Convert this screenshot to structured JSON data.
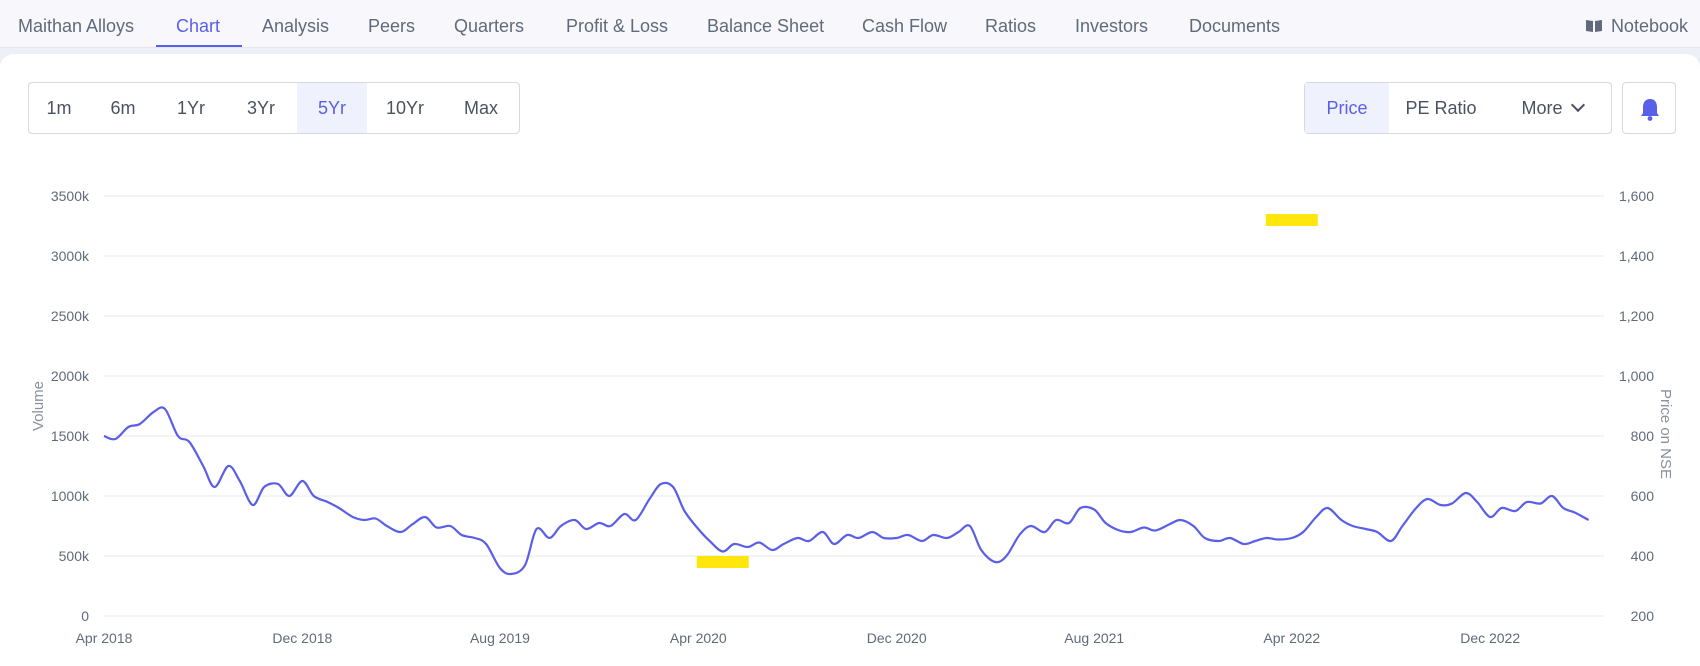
{
  "nav": {
    "tabs": [
      {
        "label": "Maithan Alloys",
        "active": false
      },
      {
        "label": "Chart",
        "active": true
      },
      {
        "label": "Analysis",
        "active": false
      },
      {
        "label": "Peers",
        "active": false
      },
      {
        "label": "Quarters",
        "active": false
      },
      {
        "label": "Profit & Loss",
        "active": false
      },
      {
        "label": "Balance Sheet",
        "active": false
      },
      {
        "label": "Cash Flow",
        "active": false
      },
      {
        "label": "Ratios",
        "active": false
      },
      {
        "label": "Investors",
        "active": false
      },
      {
        "label": "Documents",
        "active": false
      }
    ],
    "notebook_label": "Notebook"
  },
  "ranges": [
    {
      "label": "1m",
      "active": false
    },
    {
      "label": "6m",
      "active": false
    },
    {
      "label": "1Yr",
      "active": false
    },
    {
      "label": "3Yr",
      "active": false
    },
    {
      "label": "5Yr",
      "active": true
    },
    {
      "label": "10Yr",
      "active": false
    },
    {
      "label": "Max",
      "active": false
    }
  ],
  "metrics": {
    "price_label": "Price",
    "pe_label": "PE Ratio",
    "more_label": "More"
  },
  "colors": {
    "accent": "#5a5fe8",
    "price_line": "#5a5fe8",
    "volume_bar": "#b9ccf7",
    "highlight": "#ffe600"
  },
  "chart_data": {
    "type": "line",
    "x_range": [
      "2018-04",
      "2023-04"
    ],
    "x_ticks": [
      "Apr 2018",
      "Dec 2018",
      "Aug 2019",
      "Apr 2020",
      "Dec 2020",
      "Aug 2021",
      "Apr 2022",
      "Dec 2022"
    ],
    "y_left": {
      "label": "Volume",
      "range": [
        0,
        3500000
      ],
      "ticks": [
        "0",
        "500k",
        "1000k",
        "1500k",
        "2000k",
        "2500k",
        "3000k",
        "3500k"
      ]
    },
    "y_right": {
      "label": "Price on NSE",
      "range": [
        200,
        1600
      ],
      "ticks": [
        "200",
        "400",
        "600",
        "800",
        "1,000",
        "1,200",
        "1,400",
        "1,600"
      ]
    },
    "grid": true,
    "price_series": [
      [
        "2018-04-01",
        800
      ],
      [
        "2018-04-15",
        790
      ],
      [
        "2018-05-01",
        830
      ],
      [
        "2018-05-15",
        840
      ],
      [
        "2018-06-01",
        880
      ],
      [
        "2018-06-15",
        890
      ],
      [
        "2018-07-01",
        800
      ],
      [
        "2018-07-15",
        780
      ],
      [
        "2018-08-01",
        700
      ],
      [
        "2018-08-15",
        630
      ],
      [
        "2018-09-01",
        700
      ],
      [
        "2018-09-15",
        650
      ],
      [
        "2018-10-01",
        570
      ],
      [
        "2018-10-15",
        630
      ],
      [
        "2018-11-01",
        640
      ],
      [
        "2018-11-15",
        600
      ],
      [
        "2018-12-01",
        650
      ],
      [
        "2018-12-15",
        600
      ],
      [
        "2019-01-01",
        580
      ],
      [
        "2019-01-15",
        560
      ],
      [
        "2019-02-01",
        530
      ],
      [
        "2019-02-15",
        520
      ],
      [
        "2019-03-01",
        525
      ],
      [
        "2019-03-15",
        500
      ],
      [
        "2019-04-01",
        480
      ],
      [
        "2019-04-15",
        505
      ],
      [
        "2019-05-01",
        530
      ],
      [
        "2019-05-15",
        495
      ],
      [
        "2019-06-01",
        500
      ],
      [
        "2019-06-15",
        470
      ],
      [
        "2019-07-01",
        460
      ],
      [
        "2019-07-15",
        440
      ],
      [
        "2019-08-01",
        360
      ],
      [
        "2019-08-15",
        340
      ],
      [
        "2019-09-01",
        370
      ],
      [
        "2019-09-15",
        490
      ],
      [
        "2019-10-01",
        460
      ],
      [
        "2019-10-15",
        500
      ],
      [
        "2019-11-01",
        520
      ],
      [
        "2019-11-15",
        490
      ],
      [
        "2019-12-01",
        510
      ],
      [
        "2019-12-15",
        500
      ],
      [
        "2020-01-01",
        540
      ],
      [
        "2020-01-15",
        520
      ],
      [
        "2020-02-01",
        590
      ],
      [
        "2020-02-15",
        640
      ],
      [
        "2020-03-01",
        630
      ],
      [
        "2020-03-15",
        550
      ],
      [
        "2020-04-01",
        490
      ],
      [
        "2020-04-15",
        450
      ],
      [
        "2020-05-01",
        415
      ],
      [
        "2020-05-15",
        440
      ],
      [
        "2020-06-01",
        430
      ],
      [
        "2020-06-15",
        445
      ],
      [
        "2020-07-01",
        420
      ],
      [
        "2020-07-15",
        440
      ],
      [
        "2020-08-01",
        460
      ],
      [
        "2020-08-15",
        450
      ],
      [
        "2020-09-01",
        480
      ],
      [
        "2020-09-15",
        440
      ],
      [
        "2020-10-01",
        470
      ],
      [
        "2020-10-15",
        460
      ],
      [
        "2020-11-01",
        480
      ],
      [
        "2020-11-15",
        460
      ],
      [
        "2020-12-01",
        460
      ],
      [
        "2020-12-15",
        470
      ],
      [
        "2021-01-01",
        450
      ],
      [
        "2021-01-15",
        470
      ],
      [
        "2021-02-01",
        460
      ],
      [
        "2021-02-15",
        480
      ],
      [
        "2021-03-01",
        500
      ],
      [
        "2021-03-15",
        420
      ],
      [
        "2021-04-01",
        380
      ],
      [
        "2021-04-15",
        400
      ],
      [
        "2021-05-01",
        470
      ],
      [
        "2021-05-15",
        500
      ],
      [
        "2021-06-01",
        480
      ],
      [
        "2021-06-15",
        520
      ],
      [
        "2021-07-01",
        510
      ],
      [
        "2021-07-15",
        560
      ],
      [
        "2021-08-01",
        555
      ],
      [
        "2021-08-15",
        510
      ],
      [
        "2021-09-01",
        485
      ],
      [
        "2021-09-15",
        480
      ],
      [
        "2021-10-01",
        495
      ],
      [
        "2021-10-15",
        485
      ],
      [
        "2021-11-01",
        505
      ],
      [
        "2021-11-15",
        520
      ],
      [
        "2021-12-01",
        500
      ],
      [
        "2021-12-15",
        460
      ],
      [
        "2022-01-01",
        450
      ],
      [
        "2022-01-15",
        460
      ],
      [
        "2022-02-01",
        440
      ],
      [
        "2022-02-15",
        450
      ],
      [
        "2022-03-01",
        460
      ],
      [
        "2022-03-15",
        455
      ],
      [
        "2022-04-01",
        460
      ],
      [
        "2022-04-15",
        480
      ],
      [
        "2022-05-01",
        530
      ],
      [
        "2022-05-15",
        560
      ],
      [
        "2022-06-01",
        520
      ],
      [
        "2022-06-15",
        500
      ],
      [
        "2022-07-01",
        490
      ],
      [
        "2022-07-15",
        480
      ],
      [
        "2022-08-01",
        450
      ],
      [
        "2022-08-15",
        500
      ],
      [
        "2022-09-01",
        560
      ],
      [
        "2022-09-15",
        590
      ],
      [
        "2022-10-01",
        570
      ],
      [
        "2022-10-15",
        575
      ],
      [
        "2022-11-01",
        610
      ],
      [
        "2022-11-15",
        580
      ],
      [
        "2022-12-01",
        530
      ],
      [
        "2022-12-15",
        560
      ],
      [
        "2023-01-01",
        550
      ],
      [
        "2023-01-15",
        580
      ],
      [
        "2023-02-01",
        575
      ],
      [
        "2023-02-15",
        600
      ],
      [
        "2023-03-01",
        560
      ],
      [
        "2023-03-15",
        545
      ],
      [
        "2023-04-01",
        520
      ]
    ],
    "volume_series_note": "",
    "annotations": [
      {
        "type": "highlight",
        "near_date": "2020-05",
        "near_price": 380
      },
      {
        "type": "highlight",
        "near_date": "2022-04",
        "near_price": 1520
      }
    ]
  }
}
